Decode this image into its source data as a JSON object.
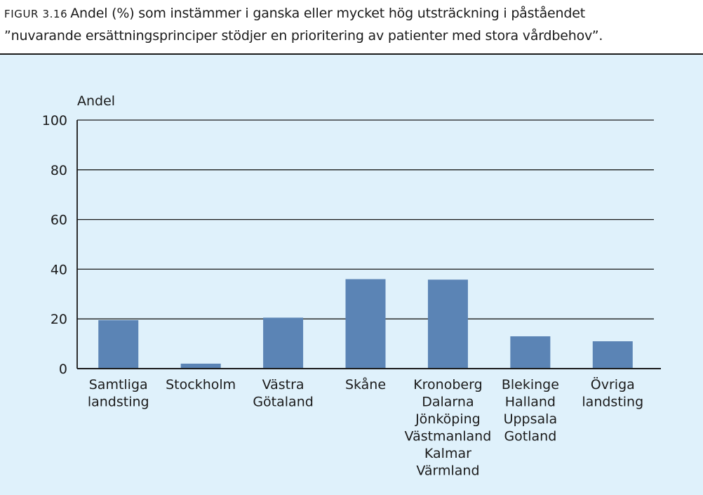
{
  "caption": {
    "label": "FIGUR 3.16",
    "line1": "Andel (%) som instämmer i ganska eller mycket hög utsträckning i påståendet",
    "line2": "”nuvarande ersättningsprinciper stödjer en prioritering av patienter med stora vårdbehov”."
  },
  "chart_data": {
    "type": "bar",
    "ylabel": "Andel",
    "xlabel": "",
    "ylim": [
      0,
      100
    ],
    "yticks": [
      0,
      20,
      40,
      60,
      80,
      100
    ],
    "grid": true,
    "categories": [
      [
        "Samtliga",
        "landsting"
      ],
      [
        "Stockholm"
      ],
      [
        "Västra",
        "Götaland"
      ],
      [
        "Skåne"
      ],
      [
        "Kronoberg",
        "Dalarna",
        "Jönköping",
        "Västmanland",
        "Kalmar",
        "Värmland"
      ],
      [
        "Blekinge",
        "Halland",
        "Uppsala",
        "Gotland"
      ],
      [
        "Övriga",
        "landsting"
      ]
    ],
    "values": [
      19.5,
      2,
      20.5,
      36,
      35.8,
      13,
      11
    ],
    "bar_color": "#5b84b5"
  }
}
